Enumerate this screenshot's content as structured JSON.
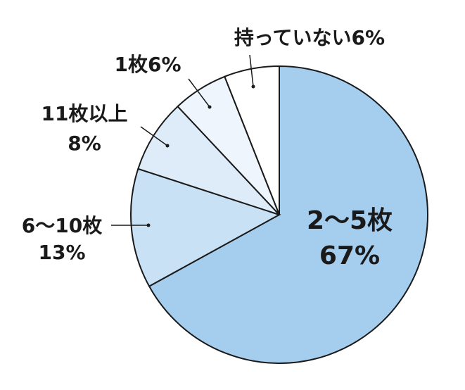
{
  "chart_data": {
    "type": "pie",
    "categories": [
      "2〜5枚",
      "6〜10枚",
      "11枚以上",
      "1枚",
      "持っていない"
    ],
    "values": [
      67,
      13,
      8,
      6,
      6
    ],
    "value_labels": [
      "67%",
      "13%",
      "8%",
      "6%",
      "6%"
    ],
    "colors": [
      "#a4cdee",
      "#c9e1f5",
      "#deecf9",
      "#eef5fc",
      "#ffffff"
    ]
  }
}
